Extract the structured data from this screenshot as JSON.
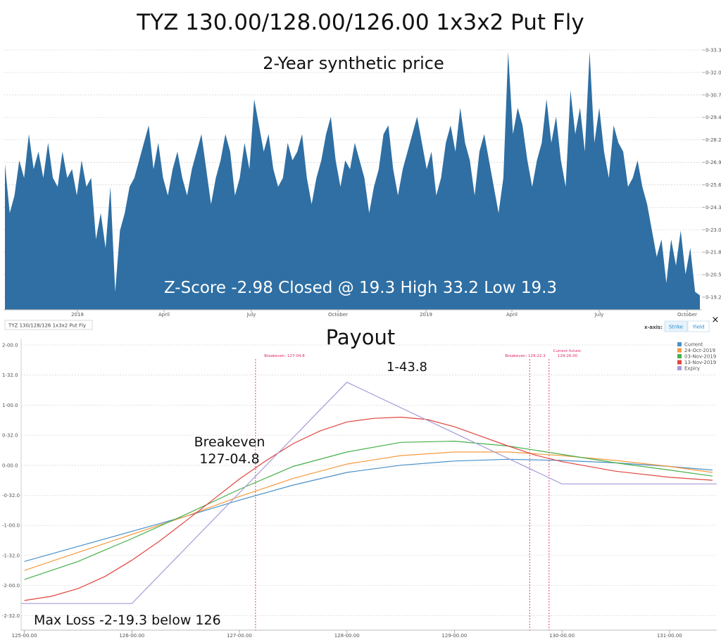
{
  "main_title": "TYZ 130.00/128.00/126.00 1x3x2 Put Fly",
  "top_panel": {
    "title": "2-Year synthetic price",
    "annotation": "Z-Score -2.98 Closed @ 19.3 High 33.2 Low 19.3",
    "color": "#2f6fa3"
  },
  "bottom_panel": {
    "instrument_label": "TYZ 130/128/126 1x3x2 Put Fly",
    "title": "Payout",
    "xaxis_label": "x-axis:",
    "xaxis_options": [
      "Strike",
      "Yield"
    ],
    "close_symbol": "×",
    "breakeven_text": [
      "Breakeven",
      "127-04.8"
    ],
    "peak_text": "1-43.8",
    "maxloss_text": "Max Loss -2-19.3 below 126",
    "vline_labels": [
      "Breakeven: 127-04.8",
      "Breakeven: 129-22.3",
      "Current future:",
      "129-26.00"
    ]
  },
  "chart_data": [
    {
      "type": "area",
      "title": "2-Year synthetic price",
      "x_ticks": [
        "2018",
        "April",
        "July",
        "October",
        "2019",
        "April",
        "July",
        "October"
      ],
      "y_ticks": [
        "0-19.2",
        "0-20.5",
        "0-21.8",
        "0-23.0",
        "0-24.3",
        "0-25.6",
        "0-26.9",
        "0-28.2",
        "0-29.4",
        "0-30.7",
        "0-32.0",
        "0-33.3"
      ],
      "ylim": [
        19.2,
        33.3
      ],
      "annotation": "Z-Score -2.98 Closed @ 19.3 High 33.2 Low 19.3",
      "series": [
        {
          "values": [
            26.8,
            24.0,
            25.0,
            27.0,
            26.0,
            28.5,
            26.5,
            27.5,
            26.0,
            28.0,
            26.0,
            25.5,
            27.5,
            26.0,
            26.5,
            25.0,
            27.0,
            25.5,
            26.0,
            22.5,
            24.0,
            22.0,
            25.5,
            19.5,
            23.0,
            24.0,
            25.5,
            26.0,
            27.0,
            28.0,
            29.0,
            26.5,
            28.0,
            26.0,
            25.0,
            26.5,
            27.5,
            26.0,
            25.0,
            26.5,
            27.5,
            28.5,
            26.5,
            24.5,
            26.0,
            27.0,
            28.5,
            27.5,
            25.0,
            26.0,
            28.0,
            26.5,
            30.5,
            29.0,
            27.5,
            28.5,
            26.5,
            25.5,
            26.0,
            28.0,
            27.0,
            27.5,
            28.5,
            26.0,
            24.5,
            26.0,
            27.0,
            28.5,
            29.5,
            27.0,
            25.5,
            27.0,
            26.5,
            28.0,
            27.0,
            26.0,
            24.0,
            25.5,
            26.5,
            28.5,
            29.0,
            26.5,
            25.0,
            26.5,
            27.5,
            28.5,
            29.5,
            28.0,
            26.5,
            27.5,
            25.0,
            26.0,
            28.0,
            29.0,
            27.5,
            30.0,
            28.0,
            27.0,
            25.0,
            27.5,
            28.5,
            27.0,
            25.5,
            24.0,
            26.0,
            33.2,
            28.5,
            30.0,
            29.0,
            27.0,
            25.5,
            27.0,
            28.0,
            30.5,
            28.0,
            29.5,
            27.0,
            25.5,
            31.0,
            28.5,
            30.0,
            27.5,
            33.2,
            28.0,
            30.0,
            27.5,
            26.0,
            29.0,
            28.0,
            27.5,
            25.5,
            26.0,
            27.0,
            25.5,
            24.5,
            23.0,
            21.5,
            22.5,
            20.0,
            22.5,
            21.0,
            23.0,
            20.5,
            22.0,
            19.5,
            19.3
          ]
        }
      ]
    },
    {
      "type": "line",
      "title": "Payout",
      "x_ticks": [
        "125-00.00",
        "126-00.00",
        "127-00.00",
        "128-00.00",
        "129-00.00",
        "130-00.00",
        "131-00.00"
      ],
      "y_ticks": [
        "2-00.0",
        "1-32.0",
        "1-00.0",
        "0-32.0",
        "0-00.0",
        "-0-32.0",
        "-1-00.0",
        "-1-32.0",
        "-2-00.0",
        "-2-32.0"
      ],
      "xlim": [
        124.97,
        131.44
      ],
      "ylim": [
        -2.52,
        2.0
      ],
      "legend": "top-right",
      "series": [
        {
          "name": "Current",
          "color": "#4a90c8",
          "x": [
            125.0,
            125.5,
            126.0,
            126.5,
            127.0,
            127.5,
            128.0,
            128.5,
            129.0,
            129.5,
            130.0,
            130.5,
            131.0,
            131.4
          ],
          "y": [
            -1.6,
            -1.35,
            -1.1,
            -0.85,
            -0.58,
            -0.33,
            -0.12,
            0.0,
            0.07,
            0.1,
            0.08,
            0.04,
            -0.02,
            -0.08
          ]
        },
        {
          "name": "24-Oct-2019",
          "color": "#f59a3e",
          "x": [
            125.0,
            125.5,
            126.0,
            126.5,
            127.0,
            127.5,
            128.0,
            128.5,
            129.0,
            129.5,
            130.0,
            130.5,
            131.0,
            131.4
          ],
          "y": [
            -1.75,
            -1.45,
            -1.15,
            -0.85,
            -0.52,
            -0.22,
            0.02,
            0.16,
            0.22,
            0.22,
            0.16,
            0.08,
            -0.02,
            -0.12
          ]
        },
        {
          "name": "03-Nov-2019",
          "color": "#46b04a",
          "x": [
            125.0,
            125.5,
            126.0,
            126.5,
            127.0,
            127.5,
            128.0,
            128.5,
            129.0,
            129.5,
            130.0,
            130.5,
            131.0,
            131.4
          ],
          "y": [
            -1.9,
            -1.6,
            -1.22,
            -0.82,
            -0.4,
            -0.02,
            0.22,
            0.38,
            0.4,
            0.32,
            0.18,
            0.04,
            -0.08,
            -0.18
          ]
        },
        {
          "name": "13-Nov-2019",
          "color": "#e0453e",
          "x": [
            125.0,
            125.25,
            125.5,
            125.75,
            126.0,
            126.25,
            126.5,
            126.75,
            127.0,
            127.25,
            127.5,
            127.75,
            128.0,
            128.25,
            128.5,
            128.75,
            129.0,
            129.25,
            129.5,
            129.75,
            130.0,
            130.5,
            131.0,
            131.4
          ],
          "y": [
            -2.25,
            -2.18,
            -2.05,
            -1.85,
            -1.58,
            -1.27,
            -0.93,
            -0.58,
            -0.23,
            0.08,
            0.36,
            0.57,
            0.72,
            0.78,
            0.8,
            0.76,
            0.64,
            0.48,
            0.32,
            0.17,
            0.06,
            -0.1,
            -0.2,
            -0.25
          ]
        },
        {
          "name": "Expiry",
          "color": "#a79ad8",
          "x": [
            124.97,
            126.0,
            128.0,
            130.0,
            131.44
          ],
          "y": [
            -2.3,
            -2.3,
            1.38,
            -0.31,
            -0.31
          ]
        }
      ],
      "vlines": [
        {
          "x": 127.15,
          "label": "Breakeven: 127-04.8"
        },
        {
          "x": 129.7,
          "label": "Breakeven: 129-22.3"
        },
        {
          "x": 129.88,
          "label": "Current future: 129-26.00"
        }
      ]
    }
  ]
}
